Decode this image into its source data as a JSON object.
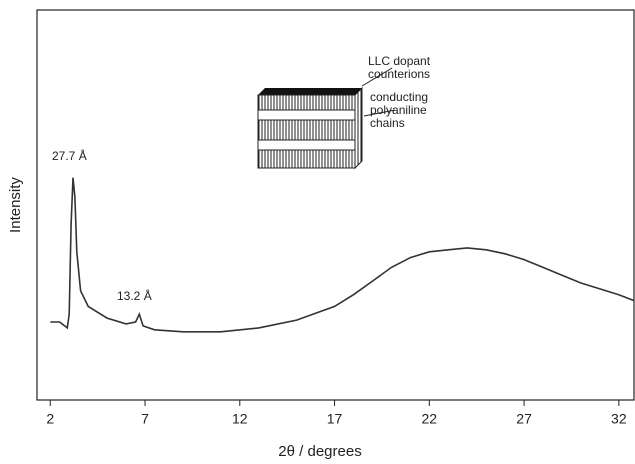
{
  "chart_data": {
    "type": "line",
    "x_label": "2θ / degrees",
    "y_label": "Intensity",
    "x": [
      2,
      2.5,
      2.9,
      3.0,
      3.1,
      3.2,
      3.3,
      3.4,
      3.6,
      4,
      5,
      6,
      6.5,
      6.7,
      6.9,
      7.5,
      9,
      11,
      13,
      15,
      17,
      18,
      19,
      20,
      21,
      22,
      23,
      24,
      25,
      26,
      27,
      28,
      29,
      30,
      31,
      32,
      32.8
    ],
    "values": [
      20,
      20,
      18.5,
      22,
      45,
      57,
      52,
      38,
      28,
      24,
      21,
      19.5,
      20,
      22,
      19,
      18,
      17.5,
      17.5,
      18.5,
      20.5,
      24,
      27,
      30.5,
      34,
      36.5,
      38,
      38.5,
      39,
      38.5,
      37.5,
      36,
      34,
      32,
      30,
      28.5,
      27,
      25.5
    ],
    "color": "#333333",
    "xlim": [
      1.3,
      32.8
    ],
    "ylim": [
      0,
      100
    ],
    "xticks": [
      2,
      7,
      12,
      17,
      22,
      27,
      32
    ],
    "annotations": [
      "27.7 Å",
      "13.2 Å"
    ],
    "inset_labels": [
      [
        "LLC dopant",
        "counterions"
      ],
      [
        "conducting",
        "polyaniline",
        "chains"
      ]
    ]
  }
}
